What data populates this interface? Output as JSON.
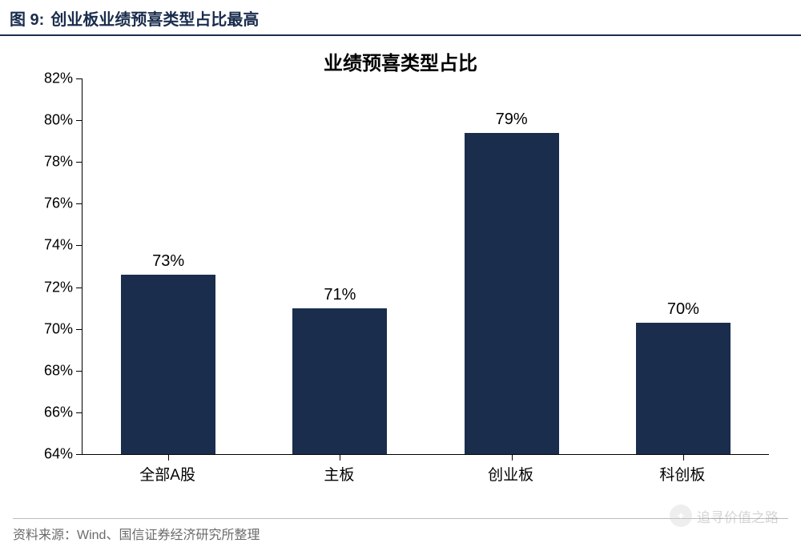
{
  "figure": {
    "number_label": "图 9:",
    "title": "创业板业绩预喜类型占比最高"
  },
  "chart": {
    "type": "bar",
    "title": "业绩预喜类型占比",
    "title_fontsize": 24,
    "background_color": "#ffffff",
    "axis_color": "#000000",
    "ylim": [
      64,
      82
    ],
    "ytick_step": 2,
    "ytick_suffix": "%",
    "ylabels": [
      "64%",
      "66%",
      "68%",
      "70%",
      "72%",
      "74%",
      "76%",
      "78%",
      "80%",
      "82%"
    ],
    "categories": [
      "全部A股",
      "主板",
      "创业板",
      "科创板"
    ],
    "values": [
      72.6,
      71.0,
      79.4,
      70.3
    ],
    "data_labels": [
      "73%",
      "71%",
      "79%",
      "70%"
    ],
    "bar_color": "#1a2d4d",
    "bar_width": 0.55,
    "label_fontsize": 19,
    "datalabel_fontsize": 20
  },
  "source": {
    "label": "资料来源：Wind、国信证券经济研究所整理"
  },
  "watermark": {
    "text": "追寻价值之路"
  }
}
